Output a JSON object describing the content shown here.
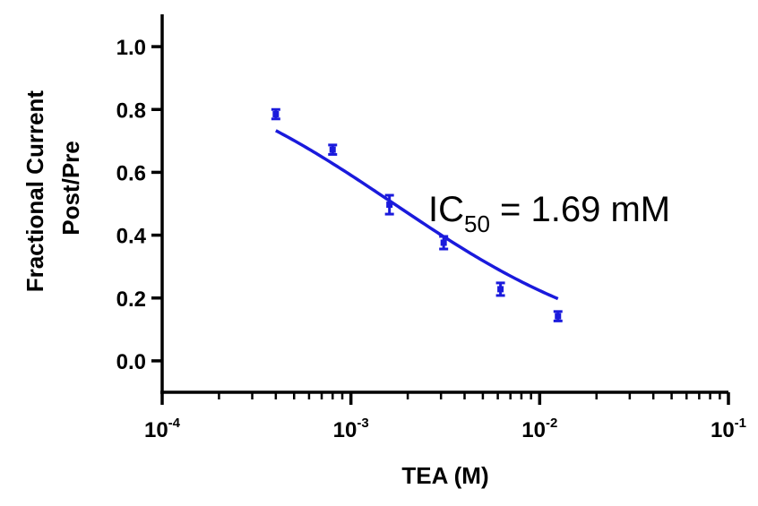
{
  "chart_data": {
    "type": "scatter",
    "xscale": "log",
    "xlim": [
      0.0001,
      0.1
    ],
    "ylim": [
      -0.1,
      1.1
    ],
    "xticks": [
      {
        "base": "10",
        "exp": "-4",
        "value": 0.0001
      },
      {
        "base": "10",
        "exp": "-3",
        "value": 0.001
      },
      {
        "base": "10",
        "exp": "-2",
        "value": 0.01
      },
      {
        "base": "10",
        "exp": "-1",
        "value": 0.1
      }
    ],
    "yticks": [
      "0.0",
      "0.2",
      "0.4",
      "0.6",
      "0.8",
      "1.0"
    ],
    "xlabel": "TEA (M)",
    "ylabel_line1": "Fractional Current",
    "ylabel_line2": "Post/Pre",
    "grid": false,
    "series": [
      {
        "color": "#1a1adc",
        "x": [
          0.0004,
          0.0008,
          0.0016,
          0.0031,
          0.0062,
          0.0125
        ],
        "y": [
          0.785,
          0.672,
          0.497,
          0.376,
          0.228,
          0.142
        ],
        "err": [
          0.015,
          0.015,
          0.03,
          0.02,
          0.02,
          0.015
        ]
      }
    ],
    "fit": {
      "model": "hill",
      "ic50": 0.00169,
      "top": 1.0,
      "bottom": 0.0,
      "hill": 0.7,
      "color": "#1a1adc"
    },
    "annotation": {
      "prefix": "IC",
      "subscript": "50",
      "suffix": " = 1.69 mM"
    }
  }
}
